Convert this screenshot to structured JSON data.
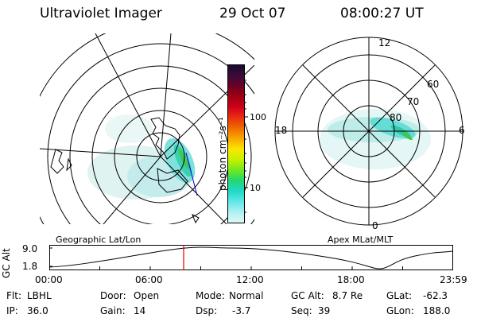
{
  "header": {
    "title": "Ultraviolet Imager",
    "date": "29 Oct 07",
    "time": "08:00:27 UT"
  },
  "left_panel": {
    "label": "Geographic Lat/Lon"
  },
  "right_panel": {
    "label": "Apex  MLat/MLT",
    "latitude_labels": [
      "60",
      "70",
      "80"
    ],
    "mlt_labels": {
      "top": "12",
      "left": "18",
      "right": "6",
      "bottom": "0"
    }
  },
  "colorbar": {
    "unit_label": "photon cm⁻²s⁻¹",
    "tick_labels": [
      "100",
      "10"
    ],
    "colors": [
      "#1b0a2e",
      "#3b0a3c",
      "#6b0024",
      "#a00012",
      "#d0001a",
      "#e83010",
      "#f06a00",
      "#f8a800",
      "#f8e800",
      "#c8f000",
      "#70e820",
      "#20d870",
      "#20d8c8",
      "#60e8e8",
      "#b0f0f0",
      "#e0f8f8"
    ]
  },
  "timeline": {
    "y_label": "GC Alt",
    "y_ticks": [
      "9.0",
      "1.8"
    ],
    "x_ticks": [
      "00:00",
      "06:00",
      "12:00",
      "18:00",
      "23:59"
    ],
    "marker_color": "#e00000"
  },
  "info": {
    "flt_label": "Flt:",
    "flt_value": "LBHL",
    "ip_label": "IP:",
    "ip_value": "36.0",
    "door_label": "Door:",
    "door_value": "Open",
    "gain_label": "Gain:",
    "gain_value": "14",
    "mode_label": "Mode:",
    "mode_value": "Normal",
    "dsp_label": "Dsp:",
    "dsp_value": "-3.7",
    "gcalt_label": "GC Alt:",
    "gcalt_value": "8.7 Re",
    "seq_label": "Seq:",
    "seq_value": "39",
    "glat_label": "GLat:",
    "glat_value": "-62.3",
    "glon_label": "GLon:",
    "glon_value": "188.0"
  }
}
